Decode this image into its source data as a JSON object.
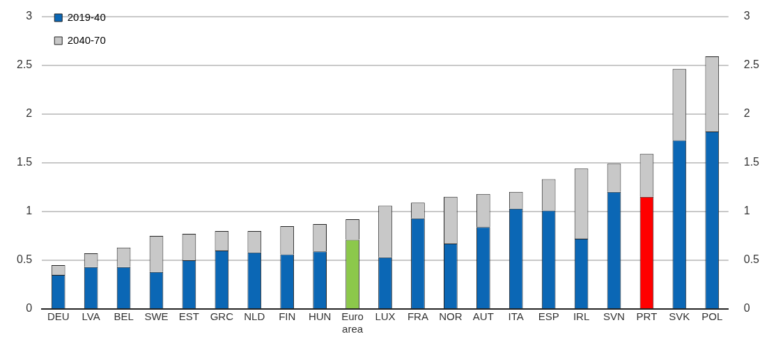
{
  "chart_data": {
    "type": "bar",
    "stacked": true,
    "categories": [
      "DEU",
      "LVA",
      "BEL",
      "SWE",
      "EST",
      "GRC",
      "NLD",
      "FIN",
      "HUN",
      "Euro area",
      "LUX",
      "FRA",
      "NOR",
      "AUT",
      "ITA",
      "ESP",
      "IRL",
      "SVN",
      "PRT",
      "SVK",
      "POL"
    ],
    "series": [
      {
        "name": "2019-40",
        "color": "#0b67b5",
        "colors": [
          "#0b67b5",
          "#0b67b5",
          "#0b67b5",
          "#0b67b5",
          "#0b67b5",
          "#0b67b5",
          "#0b67b5",
          "#0b67b5",
          "#0b67b5",
          "#8cc84b",
          "#0b67b5",
          "#0b67b5",
          "#0b67b5",
          "#0b67b5",
          "#0b67b5",
          "#0b67b5",
          "#0b67b5",
          "#0b67b5",
          "#ff0000",
          "#0b67b5",
          "#0b67b5"
        ],
        "values": [
          0.35,
          0.43,
          0.43,
          0.38,
          0.5,
          0.6,
          0.58,
          0.56,
          0.59,
          0.71,
          0.53,
          0.93,
          0.67,
          0.84,
          1.03,
          1.01,
          0.72,
          1.2,
          1.15,
          1.73,
          1.82
        ]
      },
      {
        "name": "2040-70",
        "color": "#c8c8c8",
        "values": [
          0.1,
          0.14,
          0.2,
          0.37,
          0.27,
          0.2,
          0.22,
          0.29,
          0.28,
          0.21,
          0.53,
          0.16,
          0.48,
          0.34,
          0.17,
          0.32,
          0.72,
          0.29,
          0.44,
          0.73,
          0.77
        ]
      }
    ],
    "ylim": [
      0,
      3
    ],
    "yticks": [
      0,
      0.5,
      1,
      1.5,
      2,
      2.5,
      3
    ],
    "y2lim": [
      0,
      3
    ],
    "y2ticks": [
      0,
      0.5,
      1,
      1.5,
      2,
      2.5,
      3
    ],
    "grid": "y",
    "legend": "top left"
  }
}
